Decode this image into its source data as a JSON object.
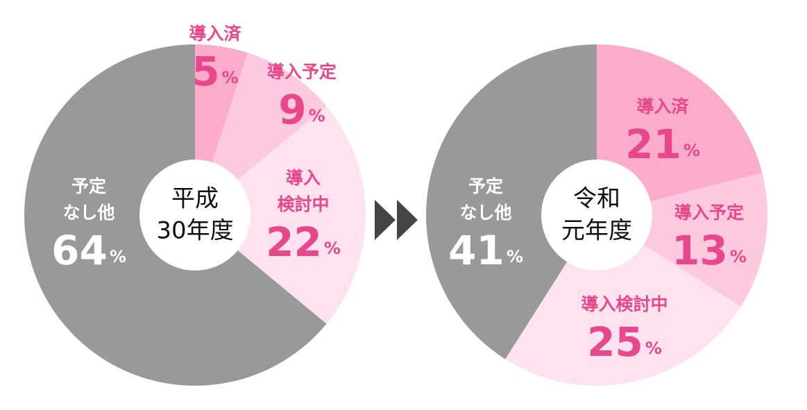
{
  "chart_data": [
    {
      "type": "pie",
      "center_label": [
        "平成",
        "30年度"
      ],
      "categories": [
        [
          "導入済"
        ],
        [
          "導入予定"
        ],
        [
          "導入",
          "検討中"
        ],
        [
          "予定",
          "なし他"
        ]
      ],
      "values": [
        5,
        9,
        22,
        64
      ],
      "value_labels": [
        "5%",
        "9%",
        "22%",
        "64%"
      ],
      "colors": [
        "#fbaccb",
        "#fdc9de",
        "#fee2ee",
        "#999999"
      ]
    },
    {
      "type": "pie",
      "center_label": [
        "令和",
        "元年度"
      ],
      "categories": [
        [
          "導入済"
        ],
        [
          "導入予定"
        ],
        [
          "導入検討中"
        ],
        [
          "予定",
          "なし他"
        ]
      ],
      "values": [
        21,
        13,
        25,
        41
      ],
      "value_labels": [
        "21%",
        "13%",
        "25%",
        "41%"
      ],
      "colors": [
        "#fbaccb",
        "#fdc9de",
        "#fee2ee",
        "#999999"
      ]
    }
  ]
}
